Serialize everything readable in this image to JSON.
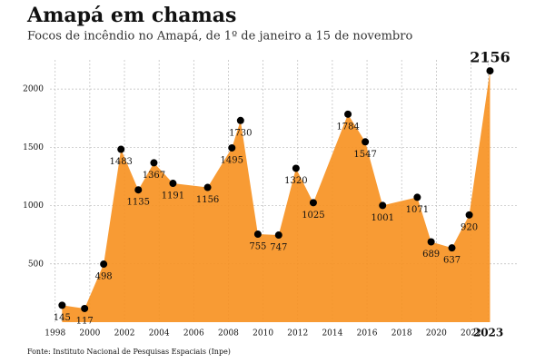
{
  "chart_data": {
    "type": "area",
    "title": "Amapá em chamas",
    "subtitle": "Focos de incêndio no Amapá, de 1º de janeiro a 15 de novembro",
    "source": "Fonte: Instituto Nacional de Pesquisas Espaciais (Inpe)",
    "x": [
      1998.4,
      1999.7,
      2000.8,
      2001.8,
      2002.8,
      2003.7,
      2004.8,
      2006.8,
      2008.2,
      2008.7,
      2009.7,
      2010.9,
      2011.9,
      2012.9,
      2014.9,
      2015.9,
      2016.9,
      2018.9,
      2019.7,
      2020.9,
      2021.9,
      2023.1
    ],
    "values": [
      145,
      117,
      498,
      1483,
      1135,
      1367,
      1191,
      1156,
      1495,
      1730,
      755,
      747,
      1320,
      1025,
      1784,
      1547,
      1001,
      1071,
      689,
      637,
      920,
      2156
    ],
    "color": "#f7901e",
    "point_color": "#000000",
    "xlim": [
      1997.7,
      2024.7
    ],
    "xticks": [
      1998,
      2000,
      2002,
      2004,
      2006,
      2008,
      2010,
      2012,
      2014,
      2016,
      2018,
      2020,
      2022,
      2023
    ],
    "ylim": [
      0,
      2250
    ],
    "yticks": [
      500,
      1000,
      1500,
      2000
    ],
    "grid": true
  }
}
